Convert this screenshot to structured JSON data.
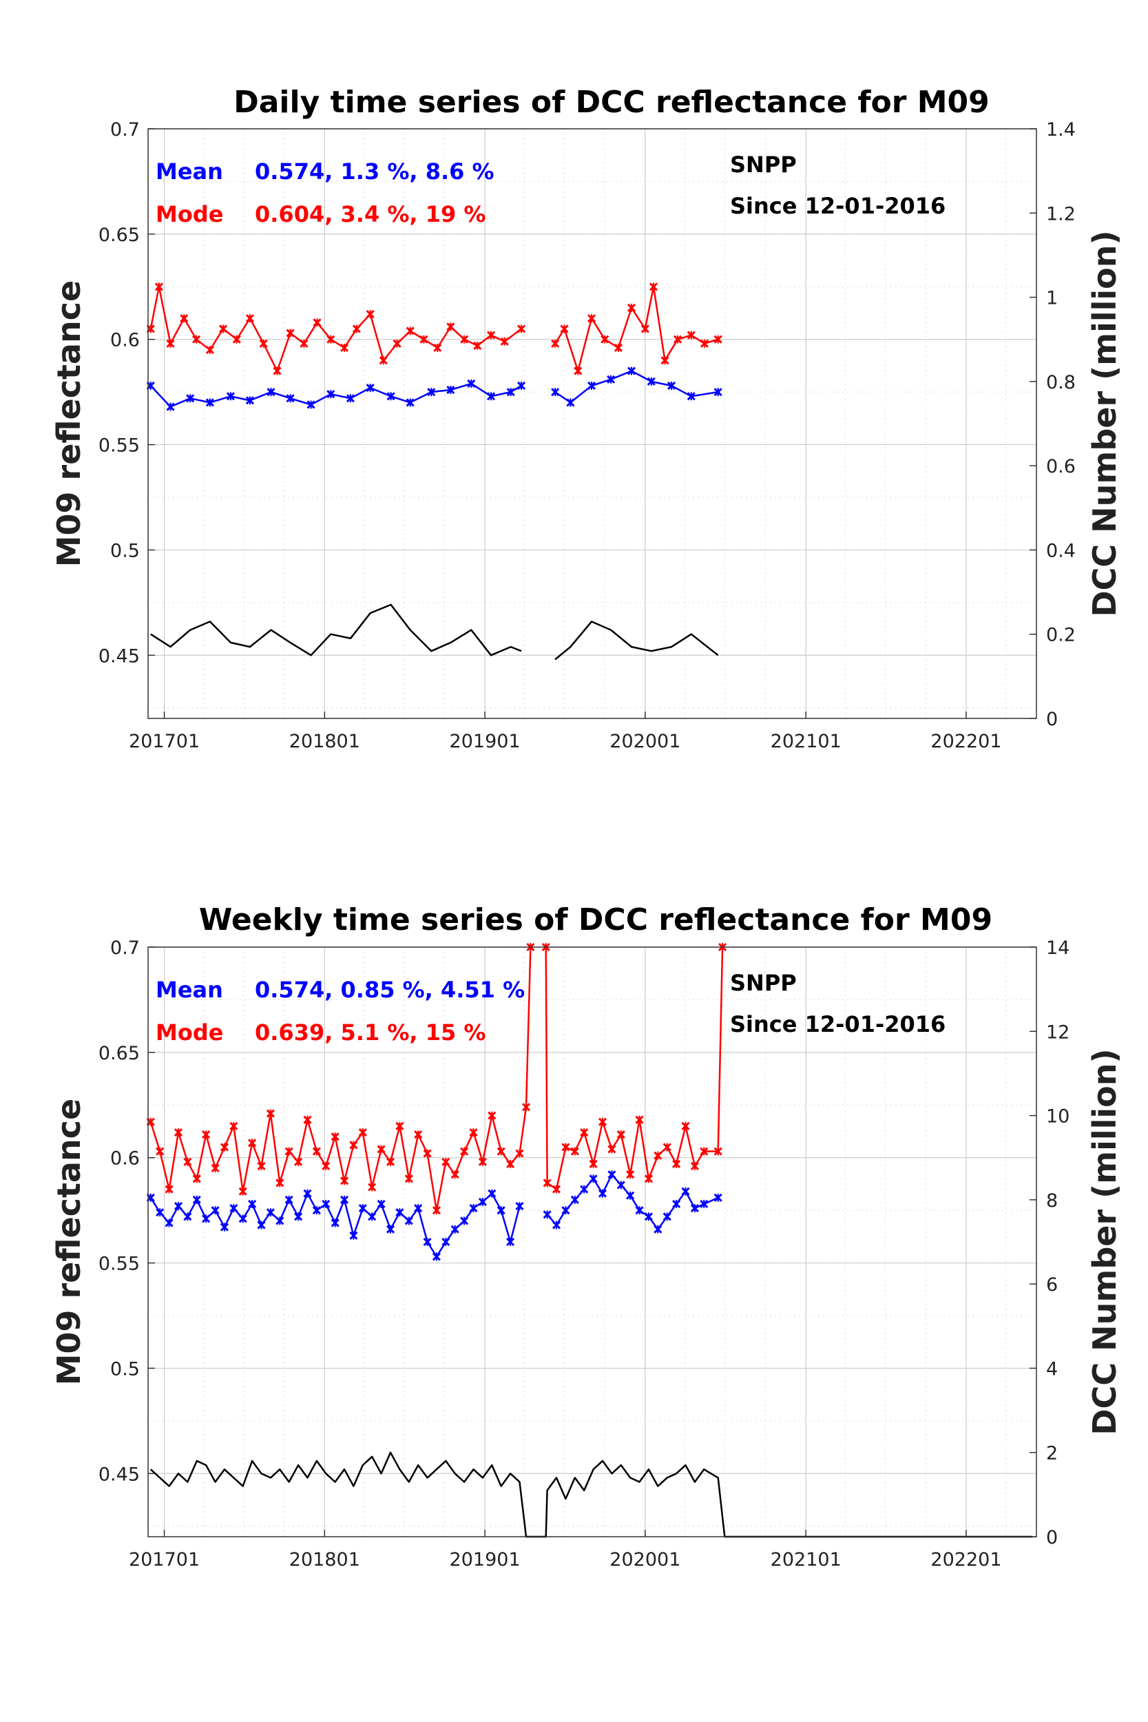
{
  "colors": {
    "mean": "#0000ff",
    "mode": "#ff0000",
    "count": "#000000",
    "grid": "#cccccc"
  },
  "chart_data": [
    {
      "type": "line",
      "title": "Daily time series of DCC reflectance for M09",
      "ylabel": "M09 reflectance",
      "y2label": "DCC Number (million)",
      "xlim": [
        "2016-11-25",
        "2022-06-10"
      ],
      "x_ticks": [
        "201701",
        "201801",
        "201901",
        "202001",
        "202101",
        "202201"
      ],
      "ylim": [
        0.42,
        0.7
      ],
      "y_ticks": [
        "0.45",
        "0.5",
        "0.55",
        "0.6",
        "0.65",
        "0.7"
      ],
      "y2lim": [
        0,
        1.4
      ],
      "y2_ticks": [
        "0",
        "0.2",
        "0.4",
        "0.6",
        "0.8",
        "1",
        "1.2",
        "1.4"
      ],
      "grid": true,
      "annotations": {
        "mean_label": "Mean",
        "mean_stats": "0.574, 1.3 %, 8.6 %",
        "mode_label": "Mode",
        "mode_stats": "0.604, 3.4 %, 19 %",
        "satellite": "SNPP",
        "since": "Since 12-01-2016"
      },
      "series": [
        {
          "name": "Mean",
          "axis": "left",
          "color": "#0000ff",
          "marker": true,
          "x": [
            "2016-12-01",
            "2017-01-15",
            "2017-03-01",
            "2017-04-15",
            "2017-06-01",
            "2017-07-15",
            "2017-09-01",
            "2017-10-15",
            "2017-12-01",
            "2018-01-15",
            "2018-03-01",
            "2018-04-15",
            "2018-06-01",
            "2018-07-15",
            "2018-09-01",
            "2018-10-15",
            "2018-12-01",
            "2019-01-15",
            "2019-03-01",
            "2019-03-25",
            null,
            "2019-06-10",
            "2019-07-15",
            "2019-09-01",
            "2019-10-15",
            "2019-12-01",
            "2020-01-15",
            "2020-03-01",
            "2020-04-15",
            "2020-06-15"
          ],
          "values": [
            0.578,
            0.568,
            0.572,
            0.57,
            0.573,
            0.571,
            0.575,
            0.572,
            0.569,
            0.574,
            0.572,
            0.577,
            0.573,
            0.57,
            0.575,
            0.576,
            0.579,
            0.573,
            0.575,
            0.578,
            null,
            0.575,
            0.57,
            0.578,
            0.581,
            0.585,
            0.58,
            0.578,
            0.573,
            0.575
          ]
        },
        {
          "name": "Mode",
          "axis": "left",
          "color": "#ff0000",
          "marker": true,
          "x": [
            "2016-12-01",
            "2016-12-20",
            "2017-01-15",
            "2017-02-15",
            "2017-03-15",
            "2017-04-15",
            "2017-05-15",
            "2017-06-15",
            "2017-07-15",
            "2017-08-15",
            "2017-09-15",
            "2017-10-15",
            "2017-11-15",
            "2017-12-15",
            "2018-01-15",
            "2018-02-15",
            "2018-03-15",
            "2018-04-15",
            "2018-05-15",
            "2018-06-15",
            "2018-07-15",
            "2018-08-15",
            "2018-09-15",
            "2018-10-15",
            "2018-11-15",
            "2018-12-15",
            "2019-01-15",
            "2019-02-15",
            "2019-03-25",
            null,
            "2019-06-10",
            "2019-07-01",
            "2019-08-01",
            "2019-09-01",
            "2019-10-01",
            "2019-11-01",
            "2019-12-01",
            "2020-01-01",
            "2020-01-20",
            "2020-02-15",
            "2020-03-15",
            "2020-04-15",
            "2020-05-15",
            "2020-06-15"
          ],
          "values": [
            0.605,
            0.625,
            0.598,
            0.61,
            0.6,
            0.595,
            0.605,
            0.6,
            0.61,
            0.598,
            0.585,
            0.603,
            0.598,
            0.608,
            0.6,
            0.596,
            0.605,
            0.612,
            0.59,
            0.598,
            0.604,
            0.6,
            0.596,
            0.606,
            0.6,
            0.597,
            0.602,
            0.599,
            0.605,
            null,
            0.598,
            0.605,
            0.585,
            0.61,
            0.6,
            0.596,
            0.615,
            0.605,
            0.625,
            0.59,
            0.6,
            0.602,
            0.598,
            0.6
          ]
        },
        {
          "name": "DCC Number",
          "axis": "right",
          "color": "#000000",
          "marker": false,
          "x": [
            "2016-12-01",
            "2017-01-15",
            "2017-03-01",
            "2017-04-15",
            "2017-06-01",
            "2017-07-15",
            "2017-09-01",
            "2017-10-15",
            "2017-12-01",
            "2018-01-15",
            "2018-03-01",
            "2018-04-15",
            "2018-06-01",
            "2018-07-15",
            "2018-09-01",
            "2018-10-15",
            "2018-12-01",
            "2019-01-15",
            "2019-03-01",
            "2019-03-25",
            null,
            "2019-06-10",
            "2019-07-15",
            "2019-09-01",
            "2019-10-15",
            "2019-12-01",
            "2020-01-15",
            "2020-03-01",
            "2020-04-15",
            "2020-06-15"
          ],
          "values": [
            0.2,
            0.17,
            0.21,
            0.23,
            0.18,
            0.17,
            0.21,
            0.18,
            0.15,
            0.2,
            0.19,
            0.25,
            0.27,
            0.21,
            0.16,
            0.18,
            0.21,
            0.15,
            0.17,
            0.16,
            null,
            0.14,
            0.17,
            0.23,
            0.21,
            0.17,
            0.16,
            0.17,
            0.2,
            0.15
          ]
        }
      ]
    },
    {
      "type": "line",
      "title": "Weekly time series of DCC reflectance for M09",
      "ylabel": "M09 reflectance",
      "y2label": "DCC Number (million)",
      "xlim": [
        "2016-11-25",
        "2022-06-10"
      ],
      "x_ticks": [
        "201701",
        "201801",
        "201901",
        "202001",
        "202101",
        "202201"
      ],
      "ylim": [
        0.42,
        0.7
      ],
      "y_ticks": [
        "0.45",
        "0.5",
        "0.55",
        "0.6",
        "0.65",
        "0.7"
      ],
      "y2lim": [
        0,
        14
      ],
      "y2_ticks": [
        "0",
        "2",
        "4",
        "6",
        "8",
        "10",
        "12",
        "14"
      ],
      "grid": true,
      "annotations": {
        "mean_label": "Mean",
        "mean_stats": "0.574, 0.85 %, 4.51 %",
        "mode_label": "Mode",
        "mode_stats": "0.639, 5.1 %, 15 %",
        "satellite": "SNPP",
        "since": "Since 12-01-2016"
      },
      "series": [
        {
          "name": "Mean",
          "axis": "left",
          "color": "#0000ff",
          "marker": true,
          "x": [
            "2016-12-01",
            "2016-12-22",
            "2017-01-12",
            "2017-02-02",
            "2017-02-23",
            "2017-03-16",
            "2017-04-06",
            "2017-04-27",
            "2017-05-18",
            "2017-06-08",
            "2017-06-29",
            "2017-07-20",
            "2017-08-10",
            "2017-08-31",
            "2017-09-21",
            "2017-10-12",
            "2017-11-02",
            "2017-11-23",
            "2017-12-14",
            "2018-01-04",
            "2018-01-25",
            "2018-02-15",
            "2018-03-08",
            "2018-03-29",
            "2018-04-19",
            "2018-05-10",
            "2018-05-31",
            "2018-06-21",
            "2018-07-12",
            "2018-08-02",
            "2018-08-23",
            "2018-09-13",
            "2018-10-04",
            "2018-10-25",
            "2018-11-15",
            "2018-12-06",
            "2018-12-27",
            "2019-01-17",
            "2019-02-07",
            "2019-02-28",
            "2019-03-21",
            null,
            "2019-05-23",
            "2019-06-13",
            "2019-07-04",
            "2019-07-25",
            "2019-08-15",
            "2019-09-05",
            "2019-09-26",
            "2019-10-17",
            "2019-11-07",
            "2019-11-28",
            "2019-12-19",
            "2020-01-09",
            "2020-01-30",
            "2020-02-20",
            "2020-03-12",
            "2020-04-02",
            "2020-04-23",
            "2020-05-14",
            "2020-06-15"
          ],
          "values": [
            0.581,
            0.574,
            0.569,
            0.577,
            0.572,
            0.58,
            0.571,
            0.575,
            0.567,
            0.576,
            0.571,
            0.578,
            0.568,
            0.574,
            0.57,
            0.58,
            0.572,
            0.583,
            0.575,
            0.578,
            0.569,
            0.58,
            0.563,
            0.576,
            0.572,
            0.578,
            0.566,
            0.574,
            0.57,
            0.576,
            0.56,
            0.553,
            0.56,
            0.566,
            0.57,
            0.576,
            0.579,
            0.583,
            0.575,
            0.56,
            0.577,
            null,
            0.573,
            0.568,
            0.575,
            0.58,
            0.585,
            0.59,
            0.583,
            0.592,
            0.587,
            0.582,
            0.575,
            0.572,
            0.566,
            0.572,
            0.578,
            0.584,
            0.576,
            0.578,
            0.581
          ]
        },
        {
          "name": "Mode",
          "axis": "left",
          "color": "#ff0000",
          "marker": true,
          "x": [
            "2016-12-01",
            "2016-12-22",
            "2017-01-12",
            "2017-02-02",
            "2017-02-23",
            "2017-03-16",
            "2017-04-06",
            "2017-04-27",
            "2017-05-18",
            "2017-06-08",
            "2017-06-29",
            "2017-07-20",
            "2017-08-10",
            "2017-08-31",
            "2017-09-21",
            "2017-10-12",
            "2017-11-02",
            "2017-11-23",
            "2017-12-14",
            "2018-01-04",
            "2018-01-25",
            "2018-02-15",
            "2018-03-08",
            "2018-03-29",
            "2018-04-19",
            "2018-05-10",
            "2018-05-31",
            "2018-06-21",
            "2018-07-12",
            "2018-08-02",
            "2018-08-23",
            "2018-09-13",
            "2018-10-04",
            "2018-10-25",
            "2018-11-15",
            "2018-12-06",
            "2018-12-27",
            "2019-01-17",
            "2019-02-07",
            "2019-02-28",
            "2019-03-21",
            "2019-04-05",
            "2019-04-15",
            null,
            "2019-05-20",
            "2019-05-23",
            "2019-06-13",
            "2019-07-04",
            "2019-07-25",
            "2019-08-15",
            "2019-09-05",
            "2019-09-26",
            "2019-10-17",
            "2019-11-07",
            "2019-11-28",
            "2019-12-19",
            "2020-01-09",
            "2020-01-30",
            "2020-02-20",
            "2020-03-12",
            "2020-04-02",
            "2020-04-23",
            "2020-05-14",
            "2020-06-15",
            "2020-06-25"
          ],
          "values": [
            0.617,
            0.603,
            0.585,
            0.612,
            0.598,
            0.59,
            0.611,
            0.595,
            0.605,
            0.615,
            0.584,
            0.607,
            0.596,
            0.621,
            0.588,
            0.603,
            0.598,
            0.618,
            0.603,
            0.596,
            0.61,
            0.589,
            0.606,
            0.612,
            0.586,
            0.604,
            0.598,
            0.615,
            0.59,
            0.611,
            0.602,
            0.575,
            0.598,
            0.592,
            0.603,
            0.612,
            0.598,
            0.62,
            0.603,
            0.597,
            0.602,
            0.624,
            0.7,
            null,
            0.7,
            0.588,
            0.585,
            0.605,
            0.603,
            0.612,
            0.597,
            0.617,
            0.604,
            0.611,
            0.592,
            0.618,
            0.59,
            0.601,
            0.605,
            0.597,
            0.615,
            0.596,
            0.603,
            0.603,
            0.7
          ]
        },
        {
          "name": "DCC Number",
          "axis": "right",
          "color": "#000000",
          "marker": false,
          "x": [
            "2016-12-01",
            "2016-12-22",
            "2017-01-12",
            "2017-02-02",
            "2017-02-23",
            "2017-03-16",
            "2017-04-06",
            "2017-04-27",
            "2017-05-18",
            "2017-06-08",
            "2017-06-29",
            "2017-07-20",
            "2017-08-10",
            "2017-08-31",
            "2017-09-21",
            "2017-10-12",
            "2017-11-02",
            "2017-11-23",
            "2017-12-14",
            "2018-01-04",
            "2018-01-25",
            "2018-02-15",
            "2018-03-08",
            "2018-03-29",
            "2018-04-19",
            "2018-05-10",
            "2018-05-31",
            "2018-06-21",
            "2018-07-12",
            "2018-08-02",
            "2018-08-23",
            "2018-09-13",
            "2018-10-04",
            "2018-10-25",
            "2018-11-15",
            "2018-12-06",
            "2018-12-27",
            "2019-01-17",
            "2019-02-07",
            "2019-02-28",
            "2019-03-21",
            "2019-04-05",
            "2019-05-20",
            "2019-05-23",
            "2019-06-13",
            "2019-07-04",
            "2019-07-25",
            "2019-08-15",
            "2019-09-05",
            "2019-09-26",
            "2019-10-17",
            "2019-11-07",
            "2019-11-28",
            "2019-12-19",
            "2020-01-09",
            "2020-01-30",
            "2020-02-20",
            "2020-03-12",
            "2020-04-02",
            "2020-04-23",
            "2020-05-14",
            "2020-06-15",
            "2020-06-30",
            "2021-06-01",
            "2022-06-01"
          ],
          "values": [
            1.6,
            1.4,
            1.2,
            1.5,
            1.3,
            1.8,
            1.7,
            1.3,
            1.6,
            1.4,
            1.2,
            1.8,
            1.5,
            1.4,
            1.6,
            1.3,
            1.7,
            1.4,
            1.8,
            1.5,
            1.3,
            1.6,
            1.2,
            1.7,
            1.9,
            1.5,
            2.0,
            1.6,
            1.3,
            1.7,
            1.4,
            1.6,
            1.8,
            1.5,
            1.3,
            1.6,
            1.4,
            1.7,
            1.2,
            1.5,
            1.3,
            0,
            0,
            1.1,
            1.4,
            0.9,
            1.4,
            1.1,
            1.6,
            1.8,
            1.5,
            1.7,
            1.4,
            1.3,
            1.6,
            1.2,
            1.4,
            1.5,
            1.7,
            1.3,
            1.6,
            1.4,
            0,
            0,
            0
          ]
        }
      ]
    }
  ]
}
